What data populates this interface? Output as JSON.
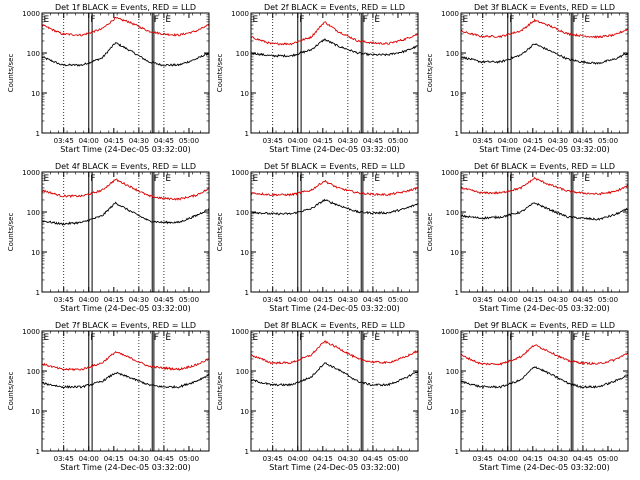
{
  "figure": {
    "background": "#ffffff",
    "black_color": "#000000",
    "red_color": "#dd0000",
    "marker_labels": [
      "E",
      "F",
      "F",
      "E"
    ]
  },
  "chart_data": [
    {
      "type": "line",
      "title": "Det 1f BLACK = Events, RED = LLD",
      "xlabel": "Start Time (24-Dec-05 03:32:00)",
      "ylabel": "Counts/sec",
      "ylim": [
        1,
        1000
      ],
      "yscale": "log",
      "y_ticks": [
        "1",
        "10",
        "100",
        "1000"
      ],
      "x_range": [
        "03:32",
        "05:12"
      ],
      "x_ticks": [
        "03:45",
        "04:00",
        "04:15",
        "04:30",
        "04:45",
        "05:00"
      ],
      "dotted_lines": [
        "03:45",
        "04:30",
        "04:45"
      ],
      "solid_lines": [
        "04:00",
        "04:02",
        "04:38",
        "04:39"
      ],
      "series": [
        {
          "name": "BLACK = Events",
          "color": "#000000",
          "x": [
            "03:32",
            "03:44",
            "03:56",
            "04:08",
            "04:16",
            "04:24",
            "04:36",
            "04:44",
            "04:54",
            "05:04",
            "05:12"
          ],
          "y": [
            80,
            50,
            50,
            75,
            180,
            120,
            60,
            50,
            50,
            70,
            100
          ]
        },
        {
          "name": "RED = LLD",
          "color": "#dd0000",
          "x": [
            "03:32",
            "03:44",
            "03:56",
            "04:08",
            "04:16",
            "04:24",
            "04:36",
            "04:44",
            "04:54",
            "05:04",
            "05:12"
          ],
          "y": [
            500,
            300,
            280,
            400,
            750,
            600,
            350,
            300,
            280,
            350,
            500
          ]
        }
      ]
    },
    {
      "type": "line",
      "title": "Det 2f BLACK = Events, RED = LLD",
      "xlabel": "Start Time (24-Dec-05 03:32:00)",
      "ylabel": "Counts/sec",
      "ylim": [
        1,
        1000
      ],
      "yscale": "log",
      "y_ticks": [
        "1",
        "10",
        "100",
        "1000"
      ],
      "x_range": [
        "03:32",
        "05:12"
      ],
      "x_ticks": [
        "03:45",
        "04:00",
        "04:15",
        "04:30",
        "04:45",
        "05:00"
      ],
      "dotted_lines": [
        "03:45",
        "04:30",
        "04:45"
      ],
      "solid_lines": [
        "04:00",
        "04:02",
        "04:38",
        "04:39"
      ],
      "series": [
        {
          "name": "BLACK = Events",
          "color": "#000000",
          "x": [
            "03:32",
            "03:44",
            "03:56",
            "04:08",
            "04:16",
            "04:24",
            "04:36",
            "04:44",
            "04:54",
            "05:04",
            "05:12"
          ],
          "y": [
            100,
            85,
            85,
            120,
            220,
            150,
            100,
            90,
            90,
            110,
            150
          ]
        },
        {
          "name": "RED = LLD",
          "color": "#dd0000",
          "x": [
            "03:32",
            "03:44",
            "03:56",
            "04:08",
            "04:16",
            "04:24",
            "04:36",
            "04:44",
            "04:54",
            "05:04",
            "05:12"
          ],
          "y": [
            250,
            170,
            170,
            250,
            600,
            350,
            200,
            180,
            170,
            220,
            300
          ]
        }
      ]
    },
    {
      "type": "line",
      "title": "Det 3f BLACK = Events, RED = LLD",
      "xlabel": "Start Time (24-Dec-05 03:32:00)",
      "ylabel": "Counts/sec",
      "ylim": [
        1,
        1000
      ],
      "yscale": "log",
      "y_ticks": [
        "1",
        "10",
        "100",
        "1000"
      ],
      "x_range": [
        "03:32",
        "05:12"
      ],
      "x_ticks": [
        "03:45",
        "04:00",
        "04:15",
        "04:30",
        "04:45",
        "05:00"
      ],
      "dotted_lines": [
        "03:45",
        "04:30",
        "04:45"
      ],
      "solid_lines": [
        "04:00",
        "04:02",
        "04:38",
        "04:39"
      ],
      "series": [
        {
          "name": "BLACK = Events",
          "color": "#000000",
          "x": [
            "03:32",
            "03:44",
            "03:56",
            "04:08",
            "04:16",
            "04:24",
            "04:36",
            "04:44",
            "04:54",
            "05:04",
            "05:12"
          ],
          "y": [
            80,
            60,
            60,
            90,
            170,
            120,
            70,
            60,
            55,
            70,
            100
          ]
        },
        {
          "name": "RED = LLD",
          "color": "#dd0000",
          "x": [
            "03:32",
            "03:44",
            "03:56",
            "04:08",
            "04:16",
            "04:24",
            "04:36",
            "04:44",
            "04:54",
            "05:04",
            "05:12"
          ],
          "y": [
            350,
            260,
            260,
            360,
            650,
            500,
            300,
            270,
            250,
            280,
            400
          ]
        }
      ]
    },
    {
      "type": "line",
      "title": "Det 4f BLACK = Events, RED = LLD",
      "xlabel": "Start Time (24-Dec-05 03:32:00)",
      "ylabel": "Counts/sec",
      "ylim": [
        1,
        1000
      ],
      "yscale": "log",
      "y_ticks": [
        "1",
        "10",
        "100",
        "1000"
      ],
      "x_range": [
        "03:32",
        "05:12"
      ],
      "x_ticks": [
        "03:45",
        "04:00",
        "04:15",
        "04:30",
        "04:45",
        "05:00"
      ],
      "dotted_lines": [
        "03:45",
        "04:30",
        "04:45"
      ],
      "solid_lines": [
        "04:00",
        "04:02",
        "04:38",
        "04:39"
      ],
      "series": [
        {
          "name": "BLACK = Events",
          "color": "#000000",
          "x": [
            "03:32",
            "03:44",
            "03:56",
            "04:08",
            "04:16",
            "04:24",
            "04:36",
            "04:44",
            "04:54",
            "05:04",
            "05:12"
          ],
          "y": [
            60,
            50,
            55,
            80,
            170,
            110,
            60,
            55,
            55,
            80,
            120
          ]
        },
        {
          "name": "RED = LLD",
          "color": "#dd0000",
          "x": [
            "03:32",
            "03:44",
            "03:56",
            "04:08",
            "04:16",
            "04:24",
            "04:36",
            "04:44",
            "04:54",
            "05:04",
            "05:12"
          ],
          "y": [
            350,
            250,
            250,
            350,
            650,
            450,
            250,
            220,
            210,
            260,
            380
          ]
        }
      ]
    },
    {
      "type": "line",
      "title": "Det 5f BLACK = Events, RED = LLD",
      "xlabel": "Start Time (24-Dec-05 03:32:00)",
      "ylabel": "Counts/sec",
      "ylim": [
        1,
        1000
      ],
      "yscale": "log",
      "y_ticks": [
        "1",
        "10",
        "100",
        "1000"
      ],
      "x_range": [
        "03:32",
        "05:12"
      ],
      "x_ticks": [
        "03:45",
        "04:00",
        "04:15",
        "04:30",
        "04:45",
        "05:00"
      ],
      "dotted_lines": [
        "03:45",
        "04:30",
        "04:45"
      ],
      "solid_lines": [
        "04:00",
        "04:02",
        "04:38",
        "04:39"
      ],
      "series": [
        {
          "name": "BLACK = Events",
          "color": "#000000",
          "x": [
            "03:32",
            "03:44",
            "03:56",
            "04:08",
            "04:16",
            "04:24",
            "04:36",
            "04:44",
            "04:54",
            "05:04",
            "05:12"
          ],
          "y": [
            100,
            90,
            90,
            120,
            200,
            150,
            100,
            95,
            95,
            120,
            160
          ]
        },
        {
          "name": "RED = LLD",
          "color": "#dd0000",
          "x": [
            "03:32",
            "03:44",
            "03:56",
            "04:08",
            "04:16",
            "04:24",
            "04:36",
            "04:44",
            "04:54",
            "05:04",
            "05:12"
          ],
          "y": [
            300,
            270,
            270,
            350,
            600,
            400,
            300,
            280,
            270,
            320,
            400
          ]
        }
      ]
    },
    {
      "type": "line",
      "title": "Det 6f BLACK = Events, RED = LLD",
      "xlabel": "Start Time (24-Dec-05 03:32:00)",
      "ylabel": "Counts/sec",
      "ylim": [
        1,
        1000
      ],
      "yscale": "log",
      "y_ticks": [
        "1",
        "10",
        "100",
        "1000"
      ],
      "x_range": [
        "03:32",
        "05:12"
      ],
      "x_ticks": [
        "03:45",
        "04:00",
        "04:15",
        "04:30",
        "04:45",
        "05:00"
      ],
      "dotted_lines": [
        "03:45",
        "04:30",
        "04:45"
      ],
      "solid_lines": [
        "04:00",
        "04:02",
        "04:38",
        "04:39"
      ],
      "series": [
        {
          "name": "BLACK = Events",
          "color": "#000000",
          "x": [
            "03:32",
            "03:44",
            "03:56",
            "04:08",
            "04:16",
            "04:24",
            "04:36",
            "04:44",
            "04:54",
            "05:04",
            "05:12"
          ],
          "y": [
            80,
            70,
            75,
            100,
            170,
            120,
            75,
            70,
            65,
            85,
            120
          ]
        },
        {
          "name": "RED = LLD",
          "color": "#dd0000",
          "x": [
            "03:32",
            "03:44",
            "03:56",
            "04:08",
            "04:16",
            "04:24",
            "04:36",
            "04:44",
            "04:54",
            "05:04",
            "05:12"
          ],
          "y": [
            400,
            300,
            300,
            400,
            700,
            500,
            330,
            300,
            280,
            320,
            450
          ]
        }
      ]
    },
    {
      "type": "line",
      "title": "Det 7f BLACK = Events, RED = LLD",
      "xlabel": "Start Time (24-Dec-05 03:32:00)",
      "ylabel": "Counts/sec",
      "ylim": [
        1,
        1000
      ],
      "yscale": "log",
      "y_ticks": [
        "1",
        "10",
        "100",
        "1000"
      ],
      "x_range": [
        "03:32",
        "05:12"
      ],
      "x_ticks": [
        "03:45",
        "04:00",
        "04:15",
        "04:30",
        "04:45",
        "05:00"
      ],
      "dotted_lines": [
        "03:45",
        "04:30",
        "04:45"
      ],
      "solid_lines": [
        "04:00",
        "04:02",
        "04:38",
        "04:39"
      ],
      "series": [
        {
          "name": "BLACK = Events",
          "color": "#000000",
          "x": [
            "03:32",
            "03:44",
            "03:56",
            "04:08",
            "04:16",
            "04:24",
            "04:36",
            "04:44",
            "04:54",
            "05:04",
            "05:12"
          ],
          "y": [
            50,
            40,
            40,
            55,
            90,
            70,
            45,
            40,
            40,
            55,
            80
          ]
        },
        {
          "name": "RED = LLD",
          "color": "#dd0000",
          "x": [
            "03:32",
            "03:44",
            "03:56",
            "04:08",
            "04:16",
            "04:24",
            "04:36",
            "04:44",
            "04:54",
            "05:04",
            "05:12"
          ],
          "y": [
            150,
            110,
            110,
            160,
            300,
            220,
            130,
            120,
            110,
            140,
            200
          ]
        }
      ]
    },
    {
      "type": "line",
      "title": "Det 8f BLACK = Events, RED = LLD",
      "xlabel": "Start Time (24-Dec-05 03:32:00)",
      "ylabel": "Counts/sec",
      "ylim": [
        1,
        1000
      ],
      "yscale": "log",
      "y_ticks": [
        "1",
        "10",
        "100",
        "1000"
      ],
      "x_range": [
        "03:32",
        "05:12"
      ],
      "x_ticks": [
        "03:45",
        "04:00",
        "04:15",
        "04:30",
        "04:45",
        "05:00"
      ],
      "dotted_lines": [
        "03:45",
        "04:30",
        "04:45"
      ],
      "solid_lines": [
        "04:00",
        "04:02",
        "04:38",
        "04:39"
      ],
      "series": [
        {
          "name": "BLACK = Events",
          "color": "#000000",
          "x": [
            "03:32",
            "03:44",
            "03:56",
            "04:08",
            "04:16",
            "04:24",
            "04:36",
            "04:44",
            "04:54",
            "05:04",
            "05:12"
          ],
          "y": [
            60,
            45,
            45,
            70,
            160,
            110,
            55,
            45,
            45,
            65,
            100
          ]
        },
        {
          "name": "RED = LLD",
          "color": "#dd0000",
          "x": [
            "03:32",
            "03:44",
            "03:56",
            "04:08",
            "04:16",
            "04:24",
            "04:36",
            "04:44",
            "04:54",
            "05:04",
            "05:12"
          ],
          "y": [
            250,
            160,
            160,
            250,
            550,
            380,
            200,
            170,
            160,
            220,
            320
          ]
        }
      ]
    },
    {
      "type": "line",
      "title": "Det 9f BLACK = Events, RED = LLD",
      "xlabel": "Start Time (24-Dec-05 03:32:00)",
      "ylabel": "Counts/sec",
      "ylim": [
        1,
        1000
      ],
      "yscale": "log",
      "y_ticks": [
        "1",
        "10",
        "100",
        "1000"
      ],
      "x_range": [
        "03:32",
        "05:12"
      ],
      "x_ticks": [
        "03:45",
        "04:00",
        "04:15",
        "04:30",
        "04:45",
        "05:00"
      ],
      "dotted_lines": [
        "03:45",
        "04:30",
        "04:45"
      ],
      "solid_lines": [
        "04:00",
        "04:02",
        "04:38",
        "04:39"
      ],
      "series": [
        {
          "name": "BLACK = Events",
          "color": "#000000",
          "x": [
            "03:32",
            "03:44",
            "03:56",
            "04:08",
            "04:16",
            "04:24",
            "04:36",
            "04:44",
            "04:54",
            "05:04",
            "05:12"
          ],
          "y": [
            55,
            40,
            40,
            60,
            130,
            90,
            50,
            40,
            40,
            55,
            80
          ]
        },
        {
          "name": "RED = LLD",
          "color": "#dd0000",
          "x": [
            "03:32",
            "03:44",
            "03:56",
            "04:08",
            "04:16",
            "04:24",
            "04:36",
            "04:44",
            "04:54",
            "05:04",
            "05:12"
          ],
          "y": [
            250,
            150,
            150,
            230,
            450,
            320,
            180,
            160,
            150,
            190,
            280
          ]
        }
      ]
    }
  ]
}
